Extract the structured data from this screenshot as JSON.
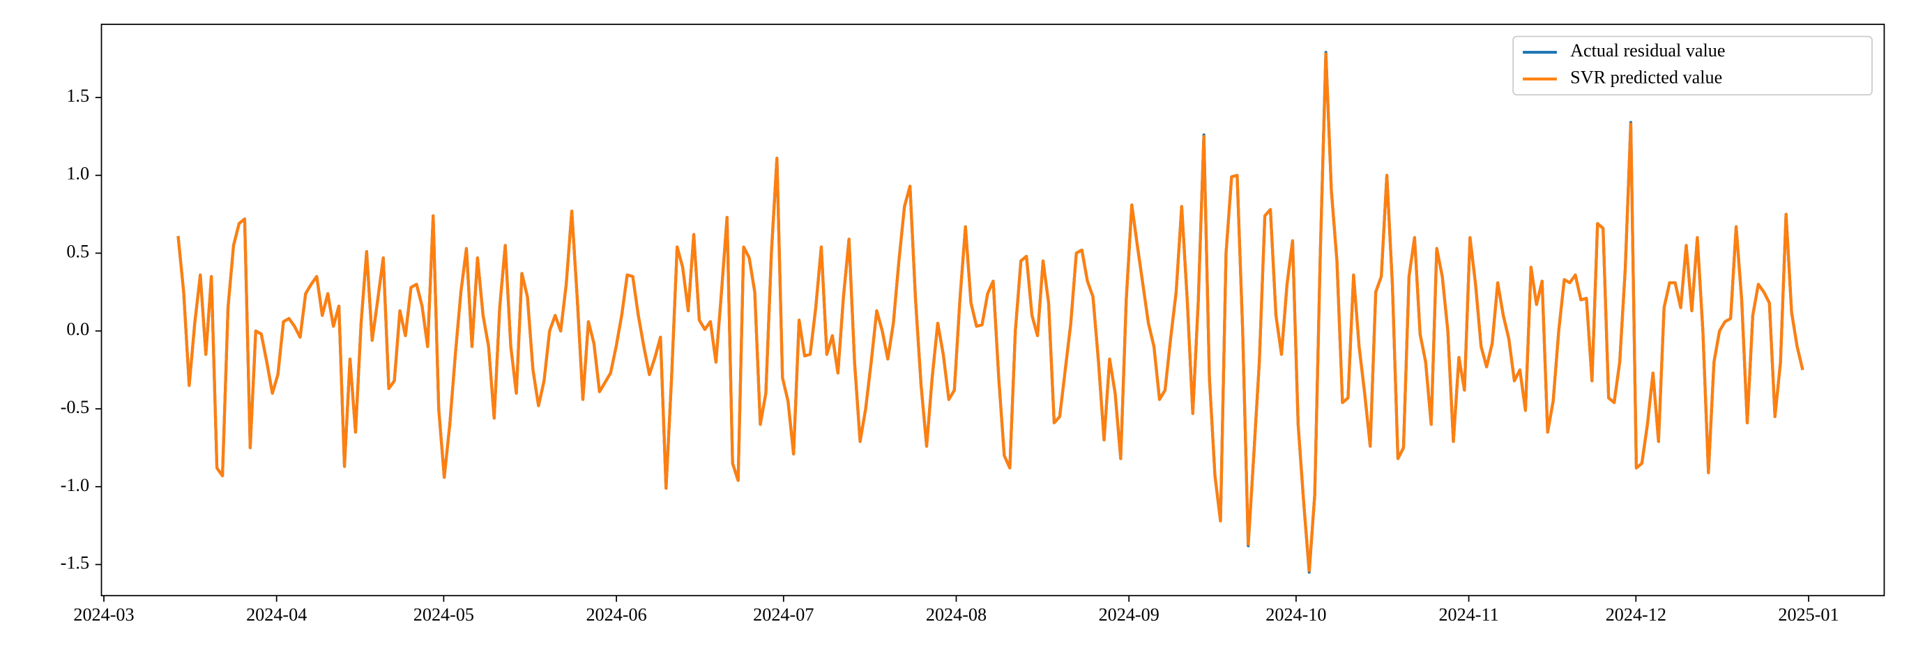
{
  "chart_data": {
    "type": "line",
    "ylim": [
      -1.7,
      1.97
    ],
    "yticks": [
      -1.5,
      {
        "value": -1.0,
        "label": "-1.0"
      },
      -0.5,
      {
        "value": 0.0,
        "label": "0.0"
      },
      0.5,
      {
        "value": 1.0,
        "label": "1.0"
      },
      1.5
    ],
    "xticks": [
      "2024-03",
      "2024-04",
      "2024-05",
      "2024-06",
      "2024-07",
      "2024-08",
      "2024-09",
      "2024-10",
      "2024-11",
      "2024-12",
      "2025-01"
    ],
    "legend": "upper right",
    "series": [
      {
        "name": "Actual residual value",
        "color": "#1f77b4",
        "values": [
          0.61,
          0.25,
          -0.35,
          0.05,
          0.36,
          -0.15,
          0.35,
          -0.88,
          -0.93,
          0.15,
          0.55,
          0.69,
          0.72,
          -0.75,
          0.0,
          -0.02,
          -0.2,
          -0.4,
          -0.28,
          0.06,
          0.08,
          0.03,
          -0.04,
          0.24,
          0.3,
          0.35,
          0.1,
          0.24,
          0.03,
          0.16,
          -0.87,
          -0.18,
          -0.65,
          0.05,
          0.51,
          -0.06,
          0.2,
          0.47,
          -0.37,
          -0.32,
          0.13,
          -0.03,
          0.28,
          0.3,
          0.16,
          -0.1,
          0.74,
          -0.5,
          -0.94,
          -0.6,
          -0.15,
          0.25,
          0.53,
          -0.1,
          0.47,
          0.1,
          -0.1,
          -0.56,
          0.15,
          0.55,
          -0.1,
          -0.4,
          0.37,
          0.22,
          -0.25,
          -0.48,
          -0.32,
          0.0,
          0.1,
          0.0,
          0.3,
          0.77,
          0.2,
          -0.44,
          0.06,
          -0.08,
          -0.39,
          -0.33,
          -0.27,
          -0.1,
          0.1,
          0.36,
          0.35,
          0.1,
          -0.1,
          -0.28,
          -0.17,
          -0.04,
          -1.01,
          -0.3,
          0.54,
          0.41,
          0.13,
          0.62,
          0.07,
          0.01,
          0.06,
          -0.2,
          0.25,
          0.73,
          -0.85,
          -0.96,
          0.54,
          0.47,
          0.25,
          -0.6,
          -0.4,
          0.5,
          1.11,
          -0.3,
          -0.45,
          -0.79,
          0.07,
          -0.16,
          -0.15,
          0.15,
          0.54,
          -0.15,
          -0.03,
          -0.27,
          0.22,
          0.59,
          -0.2,
          -0.71,
          -0.5,
          -0.2,
          0.13,
          0.0,
          -0.18,
          0.05,
          0.45,
          0.8,
          0.93,
          0.2,
          -0.35,
          -0.74,
          -0.3,
          0.05,
          -0.15,
          -0.44,
          -0.38,
          0.2,
          0.67,
          0.18,
          0.03,
          0.04,
          0.24,
          0.32,
          -0.3,
          -0.8,
          -0.88,
          0.0,
          0.45,
          0.48,
          0.1,
          -0.03,
          0.45,
          0.18,
          -0.59,
          -0.55,
          -0.25,
          0.05,
          0.5,
          0.52,
          0.32,
          0.22,
          -0.2,
          -0.7,
          -0.18,
          -0.4,
          -0.82,
          0.2,
          0.81,
          0.55,
          0.3,
          0.05,
          -0.1,
          -0.44,
          -0.38,
          -0.05,
          0.25,
          0.8,
          0.2,
          -0.53,
          0.2,
          1.26,
          -0.3,
          -0.93,
          -1.22,
          0.5,
          0.99,
          1.0,
          0.0,
          -1.38,
          -0.8,
          -0.2,
          0.74,
          0.78,
          0.1,
          -0.15,
          0.3,
          0.58,
          -0.6,
          -1.1,
          -1.55,
          -1.05,
          0.5,
          1.79,
          0.9,
          0.45,
          -0.46,
          -0.43,
          0.36,
          -0.1,
          -0.4,
          -0.74,
          0.25,
          0.35,
          1.0,
          0.3,
          -0.82,
          -0.75,
          0.35,
          0.6,
          -0.02,
          -0.2,
          -0.6,
          0.53,
          0.35,
          0.0,
          -0.71,
          -0.17,
          -0.38,
          0.6,
          0.3,
          -0.1,
          -0.23,
          -0.08,
          0.31,
          0.1,
          -0.05,
          -0.32,
          -0.25,
          -0.51,
          0.41,
          0.17,
          0.32,
          -0.65,
          -0.45,
          0.0,
          0.33,
          0.31,
          0.36,
          0.2,
          0.21,
          -0.32,
          0.69,
          0.66,
          -0.43,
          -0.46,
          -0.2,
          0.4,
          1.34,
          -0.88,
          -0.85,
          -0.6,
          -0.27,
          -0.71,
          0.15,
          0.31,
          0.31,
          0.15,
          0.55,
          0.13,
          0.6,
          0.0,
          -0.91,
          -0.2,
          0.0,
          0.06,
          0.08,
          0.67,
          0.2,
          -0.59,
          0.1,
          0.3,
          0.25,
          0.18,
          -0.55,
          -0.2,
          0.75,
          0.12,
          -0.1,
          -0.25
        ]
      },
      {
        "name": "SVR predicted value",
        "color": "#ff7f0e",
        "values": [
          0.61,
          0.25,
          -0.35,
          0.05,
          0.36,
          -0.15,
          0.35,
          -0.88,
          -0.93,
          0.15,
          0.55,
          0.69,
          0.72,
          -0.75,
          0.0,
          -0.02,
          -0.2,
          -0.4,
          -0.28,
          0.06,
          0.08,
          0.03,
          -0.04,
          0.24,
          0.3,
          0.35,
          0.1,
          0.24,
          0.03,
          0.16,
          -0.87,
          -0.18,
          -0.65,
          0.05,
          0.51,
          -0.06,
          0.2,
          0.47,
          -0.37,
          -0.32,
          0.13,
          -0.03,
          0.28,
          0.3,
          0.16,
          -0.1,
          0.74,
          -0.5,
          -0.94,
          -0.6,
          -0.15,
          0.25,
          0.53,
          -0.1,
          0.47,
          0.1,
          -0.1,
          -0.56,
          0.15,
          0.55,
          -0.1,
          -0.4,
          0.37,
          0.22,
          -0.25,
          -0.48,
          -0.32,
          0.0,
          0.1,
          0.0,
          0.3,
          0.77,
          0.2,
          -0.44,
          0.06,
          -0.08,
          -0.39,
          -0.33,
          -0.27,
          -0.1,
          0.1,
          0.36,
          0.35,
          0.1,
          -0.1,
          -0.28,
          -0.17,
          -0.04,
          -1.01,
          -0.3,
          0.54,
          0.41,
          0.13,
          0.62,
          0.07,
          0.01,
          0.06,
          -0.2,
          0.25,
          0.73,
          -0.85,
          -0.96,
          0.54,
          0.47,
          0.25,
          -0.6,
          -0.4,
          0.5,
          1.11,
          -0.3,
          -0.45,
          -0.79,
          0.07,
          -0.16,
          -0.15,
          0.15,
          0.54,
          -0.15,
          -0.03,
          -0.27,
          0.22,
          0.59,
          -0.2,
          -0.71,
          -0.5,
          -0.2,
          0.13,
          0.0,
          -0.18,
          0.05,
          0.45,
          0.8,
          0.93,
          0.2,
          -0.35,
          -0.74,
          -0.3,
          0.05,
          -0.15,
          -0.44,
          -0.38,
          0.2,
          0.67,
          0.18,
          0.03,
          0.04,
          0.24,
          0.32,
          -0.3,
          -0.8,
          -0.88,
          0.0,
          0.45,
          0.48,
          0.1,
          -0.03,
          0.45,
          0.18,
          -0.59,
          -0.55,
          -0.25,
          0.05,
          0.5,
          0.52,
          0.32,
          0.22,
          -0.2,
          -0.7,
          -0.18,
          -0.4,
          -0.82,
          0.2,
          0.81,
          0.55,
          0.3,
          0.05,
          -0.1,
          -0.44,
          -0.38,
          -0.05,
          0.25,
          0.8,
          0.2,
          -0.53,
          0.2,
          1.25,
          -0.3,
          -0.93,
          -1.22,
          0.5,
          0.99,
          1.0,
          0.0,
          -1.37,
          -0.8,
          -0.2,
          0.74,
          0.78,
          0.1,
          -0.15,
          0.3,
          0.58,
          -0.6,
          -1.1,
          -1.54,
          -1.05,
          0.5,
          1.78,
          0.9,
          0.45,
          -0.46,
          -0.43,
          0.36,
          -0.1,
          -0.4,
          -0.74,
          0.25,
          0.35,
          1.0,
          0.3,
          -0.82,
          -0.75,
          0.35,
          0.6,
          -0.02,
          -0.2,
          -0.6,
          0.53,
          0.35,
          0.0,
          -0.71,
          -0.17,
          -0.38,
          0.6,
          0.3,
          -0.1,
          -0.23,
          -0.08,
          0.31,
          0.1,
          -0.05,
          -0.32,
          -0.25,
          -0.51,
          0.41,
          0.17,
          0.32,
          -0.65,
          -0.45,
          0.0,
          0.33,
          0.31,
          0.36,
          0.2,
          0.21,
          -0.32,
          0.69,
          0.66,
          -0.43,
          -0.46,
          -0.2,
          0.4,
          1.33,
          -0.88,
          -0.85,
          -0.6,
          -0.27,
          -0.71,
          0.15,
          0.31,
          0.31,
          0.15,
          0.55,
          0.13,
          0.6,
          0.0,
          -0.91,
          -0.2,
          0.0,
          0.06,
          0.08,
          0.67,
          0.2,
          -0.59,
          0.1,
          0.3,
          0.25,
          0.18,
          -0.55,
          -0.2,
          0.75,
          0.12,
          -0.1,
          -0.25
        ]
      }
    ]
  }
}
